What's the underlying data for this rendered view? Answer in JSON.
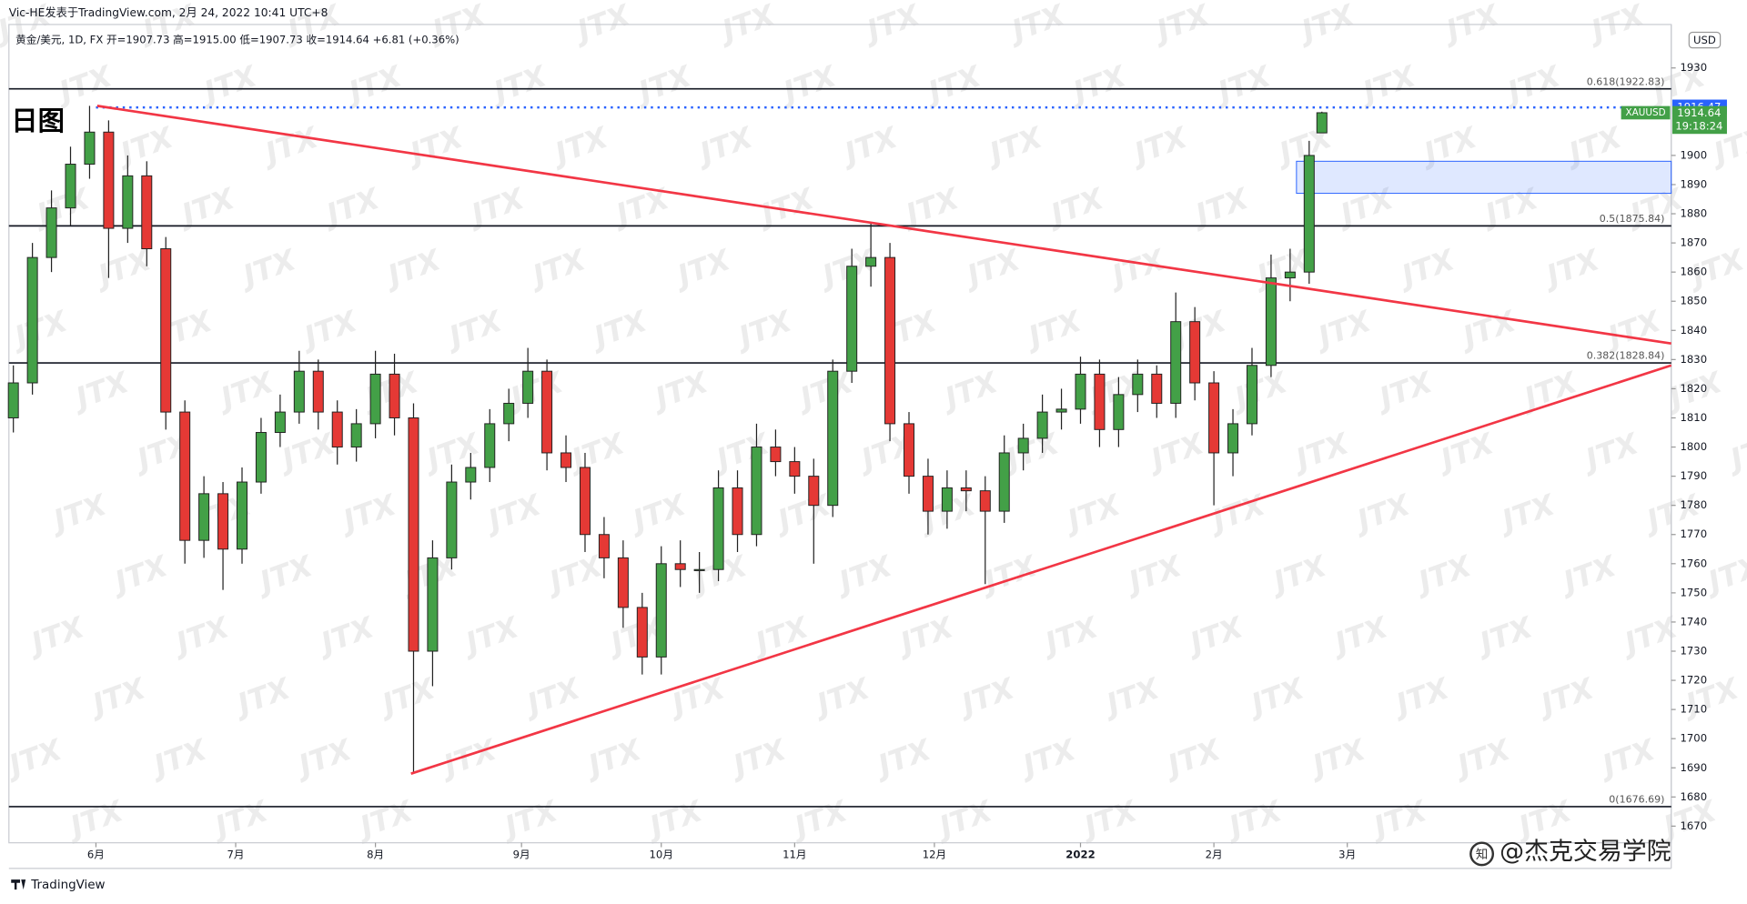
{
  "chart_data": {
    "type": "candlestick",
    "source": "Vic-HE发表于TradingView.com, 2月 24, 2022 10:41 UTC+8",
    "legend": "黄金/美元, 1D, FX  开=1907.73  高=1915.00  低=1907.73  收=1914.64 +6.81 (+0.36%)",
    "annotation": "日图",
    "currency": "USD",
    "symbol": "XAUUSD",
    "last_price": 1914.64,
    "countdown": "19:18:24",
    "marker": {
      "value": 1916.47,
      "from": 13,
      "color": "#2962ff"
    },
    "brand": "TradingView",
    "watermark": "JTX",
    "credit": "@杰克交易学院",
    "xlim": [
      -0.7,
      261
    ],
    "ylim": [
      1664.3,
      1944.9
    ],
    "xticks": [
      {
        "value": 13,
        "label": "6月"
      },
      {
        "value": 35,
        "label": "7月"
      },
      {
        "value": 57,
        "label": "8月"
      },
      {
        "value": 80,
        "label": "9月"
      },
      {
        "value": 102,
        "label": "10月"
      },
      {
        "value": 123,
        "label": "11月"
      },
      {
        "value": 145,
        "label": "12月"
      },
      {
        "value": 168,
        "label": "2022"
      },
      {
        "value": 189,
        "label": "2月"
      },
      {
        "value": 210,
        "label": "3月"
      }
    ],
    "yticks": [
      1670,
      1680,
      1690,
      1700,
      1710,
      1720,
      1730,
      1740,
      1750,
      1760,
      1770,
      1780,
      1790,
      1800,
      1810,
      1820,
      1830,
      1840,
      1850,
      1860,
      1870,
      1880,
      1890,
      1900,
      1930
    ],
    "series": [
      {
        "up_color": "#43a047",
        "down_color": "#e53935",
        "x": [
          0,
          3,
          6,
          9,
          12,
          15,
          18,
          21,
          24,
          27,
          30,
          33,
          36,
          39,
          42,
          45,
          48,
          51,
          54,
          57,
          60,
          63,
          66,
          69,
          72,
          75,
          78,
          81,
          84,
          87,
          90,
          93,
          96,
          99,
          102,
          105,
          108,
          111,
          114,
          117,
          120,
          123,
          126,
          129,
          132,
          135,
          138,
          141,
          144,
          147,
          150,
          153,
          156,
          159,
          162,
          165,
          168,
          171,
          174,
          177,
          180,
          183,
          186,
          189,
          192,
          195,
          198,
          201,
          204,
          206
        ],
        "open": [
          1810,
          1822,
          1865,
          1882,
          1897,
          1908,
          1875,
          1893,
          1868,
          1812,
          1768,
          1784,
          1765,
          1788,
          1805,
          1812,
          1826,
          1812,
          1800,
          1808,
          1825,
          1810,
          1730,
          1762,
          1788,
          1793,
          1808,
          1815,
          1826,
          1798,
          1793,
          1770,
          1762,
          1745,
          1728,
          1760,
          1758,
          1758,
          1786,
          1770,
          1800,
          1795,
          1790,
          1780,
          1826,
          1862,
          1865,
          1808,
          1790,
          1778,
          1786,
          1785,
          1778,
          1798,
          1803,
          1812,
          1813,
          1825,
          1806,
          1818,
          1825,
          1815,
          1843,
          1822,
          1798,
          1808,
          1828,
          1858,
          1860,
          1907.73
        ],
        "high": [
          1828,
          1870,
          1888,
          1903,
          1917,
          1912,
          1900,
          1898,
          1872,
          1816,
          1790,
          1788,
          1793,
          1810,
          1818,
          1833,
          1830,
          1816,
          1813,
          1833,
          1832,
          1815,
          1768,
          1794,
          1798,
          1813,
          1820,
          1834,
          1830,
          1804,
          1798,
          1776,
          1768,
          1750,
          1766,
          1768,
          1764,
          1792,
          1792,
          1808,
          1806,
          1800,
          1796,
          1830,
          1868,
          1877,
          1870,
          1812,
          1796,
          1792,
          1792,
          1790,
          1804,
          1808,
          1818,
          1820,
          1831,
          1830,
          1824,
          1830,
          1828,
          1853,
          1848,
          1826,
          1813,
          1834,
          1866,
          1868,
          1905,
          1915.0
        ],
        "low": [
          1805,
          1818,
          1860,
          1876,
          1892,
          1858,
          1870,
          1862,
          1806,
          1760,
          1762,
          1751,
          1760,
          1784,
          1800,
          1808,
          1806,
          1794,
          1795,
          1803,
          1804,
          1688,
          1718,
          1758,
          1782,
          1788,
          1802,
          1810,
          1792,
          1788,
          1764,
          1755,
          1738,
          1722,
          1722,
          1752,
          1750,
          1754,
          1764,
          1766,
          1790,
          1784,
          1760,
          1776,
          1822,
          1855,
          1802,
          1784,
          1770,
          1772,
          1778,
          1753,
          1774,
          1792,
          1798,
          1806,
          1808,
          1800,
          1800,
          1812,
          1810,
          1810,
          1816,
          1780,
          1790,
          1804,
          1824,
          1850,
          1856,
          1907.73
        ],
        "close": [
          1822,
          1865,
          1882,
          1897,
          1908,
          1875,
          1893,
          1868,
          1812,
          1768,
          1784,
          1765,
          1788,
          1805,
          1812,
          1826,
          1812,
          1800,
          1808,
          1825,
          1810,
          1730,
          1762,
          1788,
          1793,
          1808,
          1815,
          1826,
          1798,
          1793,
          1770,
          1762,
          1745,
          1728,
          1760,
          1758,
          1758,
          1786,
          1770,
          1800,
          1795,
          1790,
          1780,
          1826,
          1862,
          1865,
          1808,
          1790,
          1778,
          1786,
          1785,
          1778,
          1798,
          1803,
          1812,
          1813,
          1825,
          1806,
          1818,
          1825,
          1815,
          1843,
          1822,
          1798,
          1808,
          1828,
          1858,
          1860,
          1900,
          1914.64
        ]
      }
    ],
    "levels": [
      {
        "value": 1922.83,
        "label": "0.618(1922.83)"
      },
      {
        "value": 1875.84,
        "label": "0.5(1875.84)"
      },
      {
        "value": 1828.84,
        "label": "0.382(1828.84)"
      },
      {
        "value": 1676.69,
        "label": "0(1676.69)"
      }
    ],
    "trendlines": [
      {
        "x": [
          13.2,
          261
        ],
        "y": [
          1917,
          1835.5
        ],
        "color": "#f23645"
      },
      {
        "x": [
          62.6,
          261
        ],
        "y": [
          1688,
          1828
        ],
        "color": "#f23645"
      }
    ],
    "zone": {
      "x": [
        202,
        261
      ],
      "y": [
        1887,
        1898
      ],
      "color": "#2962ff"
    }
  }
}
